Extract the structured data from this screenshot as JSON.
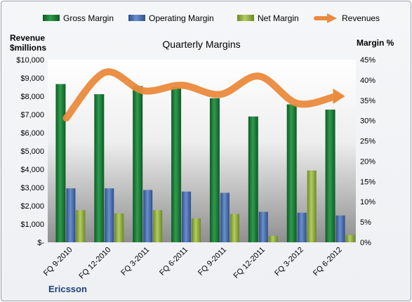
{
  "chart_data": {
    "type": "bar",
    "title": "Quarterly Margins",
    "left_axis_label_line1": "Revenue",
    "left_axis_label_line2": "$millions",
    "right_axis_label": "Margin %",
    "company": "Ericsson",
    "categories": [
      "FQ 9-2010",
      "FQ 12-2010",
      "FQ 3-2011",
      "FQ 6-2011",
      "FQ 9-2011",
      "FQ 12-2011",
      "FQ 3-2012",
      "FQ 6-2012"
    ],
    "left_ticks": [
      "$-",
      "$1,000",
      "$2,000",
      "$3,000",
      "$4,000",
      "$5,000",
      "$6,000",
      "$7,000",
      "$8,000",
      "$9,000",
      "$10,000"
    ],
    "right_ticks": [
      "0%",
      "5%",
      "10%",
      "15%",
      "20%",
      "25%",
      "30%",
      "35%",
      "40%",
      "45%"
    ],
    "ylim_left": [
      0,
      10000
    ],
    "ylim_right": [
      0,
      45
    ],
    "legend_position": "top",
    "grid": false,
    "series": [
      {
        "name": "Gross Margin",
        "axis": "right",
        "kind": "bar",
        "color": "#1f7a3a",
        "values": [
          39,
          36.5,
          38.5,
          38.3,
          35.5,
          31,
          34,
          32.7
        ]
      },
      {
        "name": "Operating Margin",
        "axis": "right",
        "kind": "bar",
        "color": "#4a6fb0",
        "values": [
          13.3,
          13.3,
          12.9,
          12.5,
          12.2,
          7.5,
          7.3,
          6.6
        ]
      },
      {
        "name": "Net Margin",
        "axis": "right",
        "kind": "bar",
        "color": "#8fae3e",
        "values": [
          7.9,
          7.1,
          7.9,
          5.9,
          7.0,
          1.6,
          17.7,
          1.8
        ]
      },
      {
        "name": "Revenues",
        "axis": "left",
        "kind": "line",
        "color": "#ea8a3c",
        "values": [
          6800,
          9300,
          8300,
          8600,
          8100,
          9100,
          7600,
          8000
        ]
      }
    ]
  }
}
